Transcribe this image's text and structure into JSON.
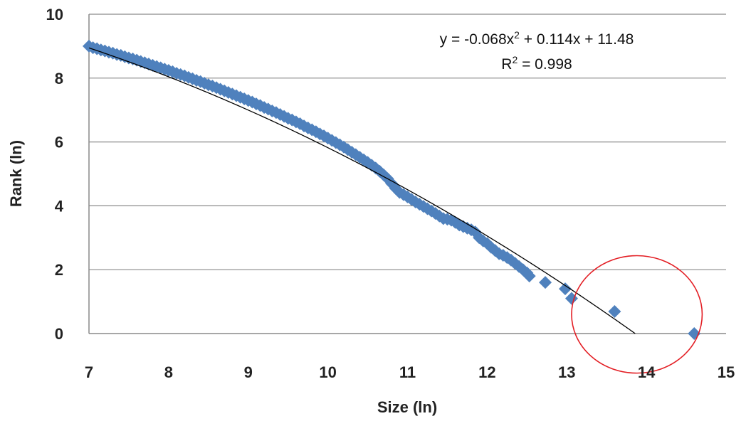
{
  "chart_data": {
    "type": "scatter",
    "xlabel": "Size (ln)",
    "ylabel": "Rank (ln)",
    "xlim": [
      7,
      15
    ],
    "ylim": [
      0,
      10
    ],
    "x_ticks": [
      7,
      8,
      9,
      10,
      11,
      12,
      13,
      14,
      15
    ],
    "y_ticks": [
      0,
      2,
      4,
      6,
      8,
      10
    ],
    "grid": "horizontal",
    "annotations": {
      "equation_prefix": "y = -0.068x",
      "equation_sup": "2",
      "equation_suffix": " + 0.114x + 11.48",
      "r2_prefix": "R",
      "r2_sup": "2",
      "r2_suffix": " = 0.998"
    },
    "trendline": {
      "type": "polynomial",
      "coefficients": [
        -0.068,
        0.114,
        11.48
      ],
      "color": "#000000"
    },
    "highlight_circle": {
      "center": [
        13.88,
        0.6
      ],
      "radius_x": 0.82,
      "color": "#e31e24"
    },
    "series": [
      {
        "color": "#4f81bd",
        "marker": "diamond",
        "points": [
          [
            7.0,
            9.0
          ],
          [
            7.05,
            8.95
          ],
          [
            7.1,
            8.92
          ],
          [
            7.15,
            8.88
          ],
          [
            7.2,
            8.85
          ],
          [
            7.25,
            8.81
          ],
          [
            7.3,
            8.78
          ],
          [
            7.35,
            8.74
          ],
          [
            7.4,
            8.71
          ],
          [
            7.45,
            8.67
          ],
          [
            7.5,
            8.63
          ],
          [
            7.55,
            8.6
          ],
          [
            7.6,
            8.56
          ],
          [
            7.65,
            8.52
          ],
          [
            7.7,
            8.48
          ],
          [
            7.75,
            8.44
          ],
          [
            7.8,
            8.4
          ],
          [
            7.85,
            8.36
          ],
          [
            7.9,
            8.32
          ],
          [
            7.95,
            8.28
          ],
          [
            8.0,
            8.24
          ],
          [
            8.05,
            8.2
          ],
          [
            8.1,
            8.15
          ],
          [
            8.15,
            8.11
          ],
          [
            8.2,
            8.07
          ],
          [
            8.25,
            8.02
          ],
          [
            8.3,
            7.98
          ],
          [
            8.35,
            7.93
          ],
          [
            8.4,
            7.89
          ],
          [
            8.45,
            7.84
          ],
          [
            8.5,
            7.79
          ],
          [
            8.55,
            7.75
          ],
          [
            8.6,
            7.7
          ],
          [
            8.65,
            7.65
          ],
          [
            8.7,
            7.6
          ],
          [
            8.75,
            7.55
          ],
          [
            8.8,
            7.5
          ],
          [
            8.85,
            7.45
          ],
          [
            8.9,
            7.4
          ],
          [
            8.95,
            7.35
          ],
          [
            9.0,
            7.3
          ],
          [
            9.05,
            7.25
          ],
          [
            9.1,
            7.19
          ],
          [
            9.15,
            7.14
          ],
          [
            9.2,
            7.08
          ],
          [
            9.25,
            7.03
          ],
          [
            9.3,
            6.97
          ],
          [
            9.35,
            6.92
          ],
          [
            9.4,
            6.86
          ],
          [
            9.45,
            6.8
          ],
          [
            9.5,
            6.74
          ],
          [
            9.55,
            6.69
          ],
          [
            9.6,
            6.63
          ],
          [
            9.65,
            6.57
          ],
          [
            9.7,
            6.5
          ],
          [
            9.75,
            6.44
          ],
          [
            9.8,
            6.38
          ],
          [
            9.85,
            6.32
          ],
          [
            9.9,
            6.25
          ],
          [
            9.95,
            6.19
          ],
          [
            10.0,
            6.12
          ],
          [
            10.05,
            6.05
          ],
          [
            10.1,
            5.98
          ],
          [
            10.15,
            5.91
          ],
          [
            10.2,
            5.84
          ],
          [
            10.25,
            5.76
          ],
          [
            10.3,
            5.68
          ],
          [
            10.35,
            5.6
          ],
          [
            10.4,
            5.52
          ],
          [
            10.45,
            5.44
          ],
          [
            10.5,
            5.36
          ],
          [
            10.55,
            5.27
          ],
          [
            10.6,
            5.18
          ],
          [
            10.65,
            5.08
          ],
          [
            10.7,
            4.97
          ],
          [
            10.75,
            4.85
          ],
          [
            10.8,
            4.7
          ],
          [
            10.85,
            4.55
          ],
          [
            10.9,
            4.42
          ],
          [
            10.95,
            4.35
          ],
          [
            11.0,
            4.28
          ],
          [
            11.05,
            4.2
          ],
          [
            11.1,
            4.12
          ],
          [
            11.15,
            4.05
          ],
          [
            11.2,
            3.98
          ],
          [
            11.25,
            3.91
          ],
          [
            11.3,
            3.84
          ],
          [
            11.35,
            3.76
          ],
          [
            11.4,
            3.68
          ],
          [
            11.45,
            3.6
          ],
          [
            11.5,
            3.58
          ],
          [
            11.55,
            3.55
          ],
          [
            11.6,
            3.48
          ],
          [
            11.65,
            3.4
          ],
          [
            11.7,
            3.35
          ],
          [
            11.75,
            3.3
          ],
          [
            11.8,
            3.25
          ],
          [
            11.85,
            3.18
          ],
          [
            11.9,
            3.0
          ],
          [
            11.95,
            2.9
          ],
          [
            12.0,
            2.82
          ],
          [
            12.05,
            2.7
          ],
          [
            12.1,
            2.6
          ],
          [
            12.15,
            2.5
          ],
          [
            12.2,
            2.45
          ],
          [
            12.25,
            2.38
          ],
          [
            12.3,
            2.3
          ],
          [
            12.35,
            2.2
          ],
          [
            12.4,
            2.1
          ],
          [
            12.45,
            2.0
          ],
          [
            12.5,
            1.9
          ],
          [
            12.53,
            1.8
          ],
          [
            12.73,
            1.6
          ],
          [
            12.98,
            1.4
          ],
          [
            13.06,
            1.1
          ],
          [
            13.6,
            0.69
          ],
          [
            14.6,
            0.0
          ]
        ]
      }
    ]
  }
}
